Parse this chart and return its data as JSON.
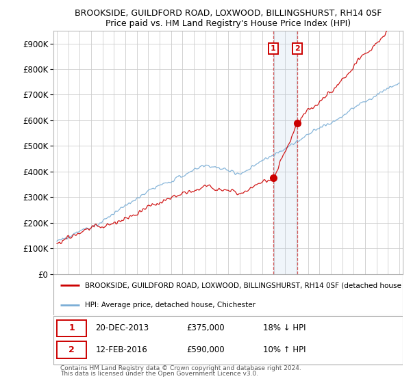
{
  "title": "BROOKSIDE, GUILDFORD ROAD, LOXWOOD, BILLINGSHURST, RH14 0SF",
  "subtitle": "Price paid vs. HM Land Registry's House Price Index (HPI)",
  "legend_line1": "BROOKSIDE, GUILDFORD ROAD, LOXWOOD, BILLINGSHURST, RH14 0SF (detached house",
  "legend_line2": "HPI: Average price, detached house, Chichester",
  "sale1_date": "20-DEC-2013",
  "sale1_price": "£375,000",
  "sale1_hpi": "18% ↓ HPI",
  "sale2_date": "12-FEB-2016",
  "sale2_price": "£590,000",
  "sale2_hpi": "10% ↑ HPI",
  "footer": "Contains HM Land Registry data © Crown copyright and database right 2024.\nThis data is licensed under the Open Government Licence v3.0.",
  "hpi_color": "#7aaed6",
  "price_color": "#cc0000",
  "ylim": [
    0,
    950000
  ],
  "yticks": [
    0,
    100000,
    200000,
    300000,
    400000,
    500000,
    600000,
    700000,
    800000,
    900000
  ],
  "sale1_price_val": 375000,
  "sale2_price_val": 590000,
  "sale1_year": 2013.95,
  "sale2_year": 2016.08
}
